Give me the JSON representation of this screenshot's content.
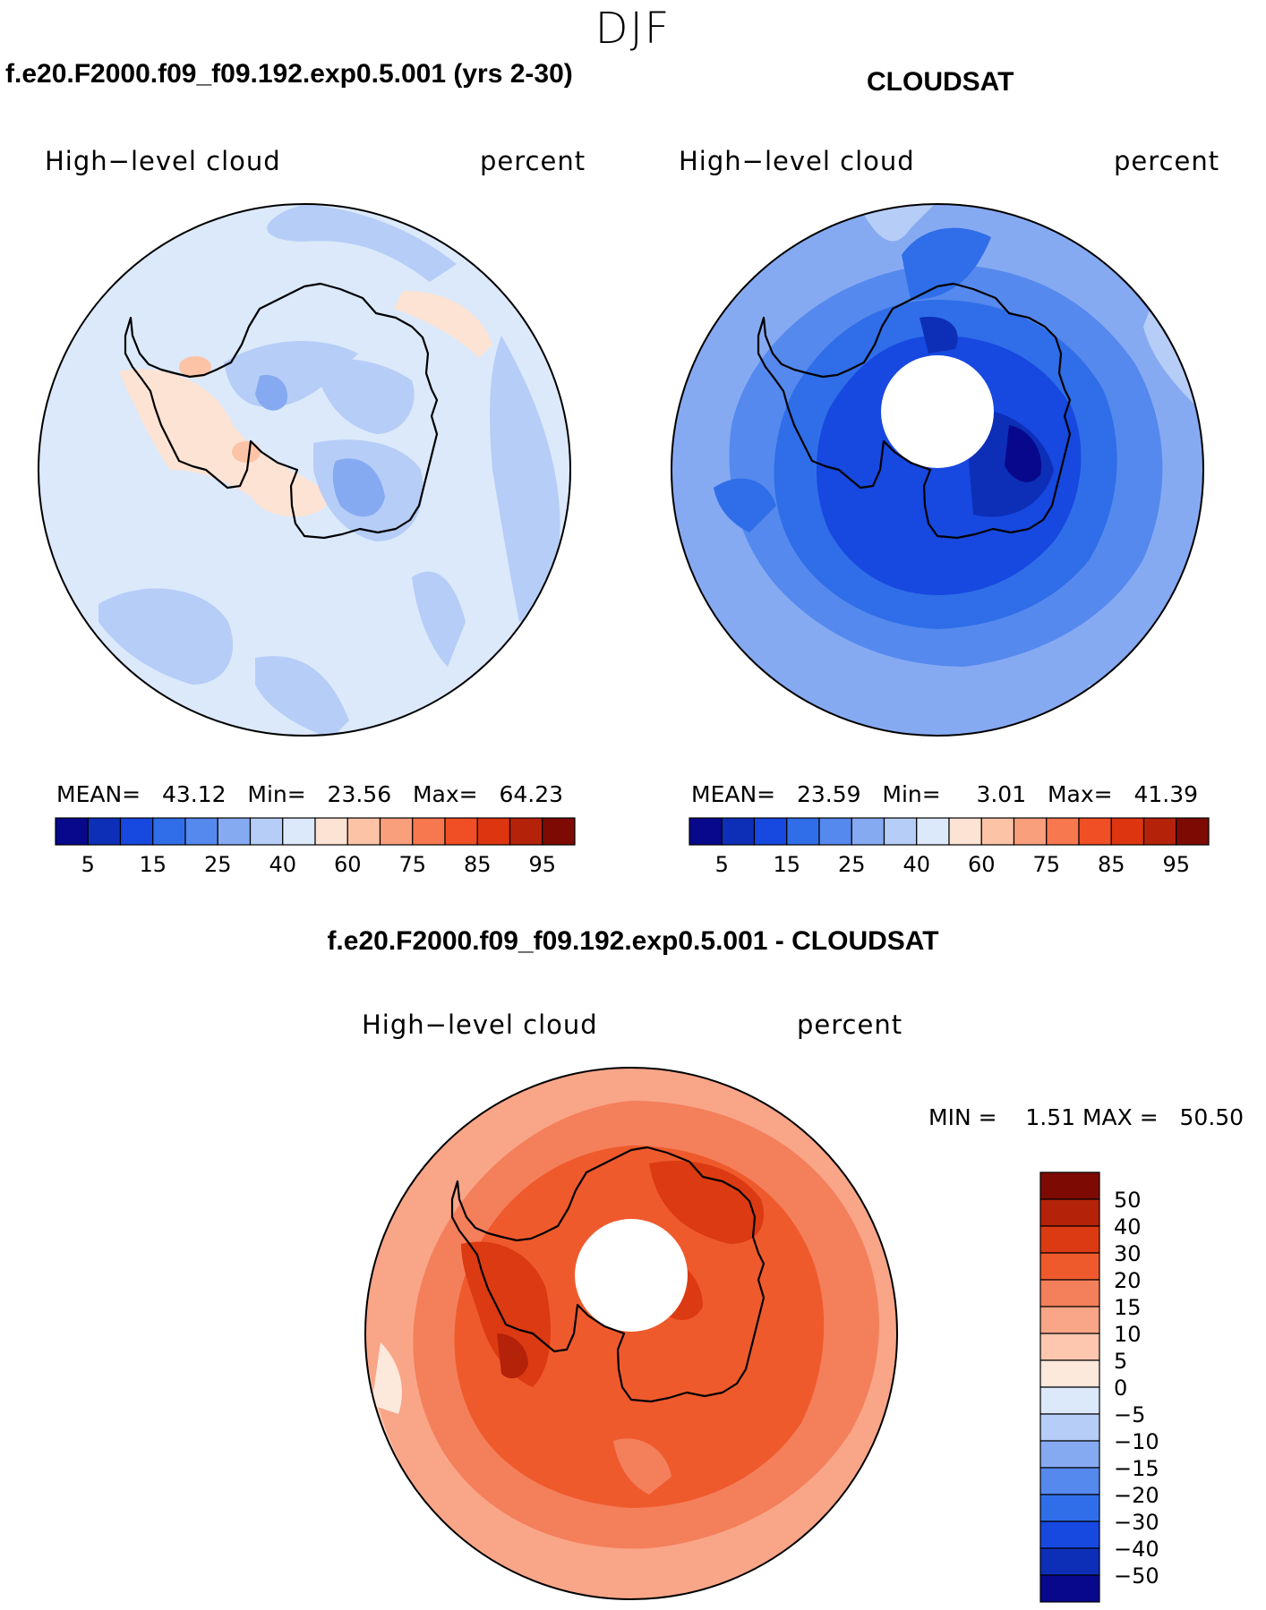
{
  "season": "DJF",
  "palette_abs": [
    "#08088c",
    "#0d2fb8",
    "#1748e0",
    "#2f6ee8",
    "#5589ee",
    "#86aaf2",
    "#b6cdf7",
    "#dbe9fb",
    "#fde3d3",
    "#fcc3a6",
    "#fa9f7c",
    "#f7784f",
    "#f04e24",
    "#dc3510",
    "#b5220a",
    "#7d0b04"
  ],
  "palette_diff": [
    "#08088c",
    "#0d2fb8",
    "#1748e0",
    "#2f6ee8",
    "#5589ee",
    "#86aaf2",
    "#b6cdf7",
    "#dbe9fb",
    "#fde8dc",
    "#fcc7ae",
    "#f9a588",
    "#f47f5b",
    "#ef5a2d",
    "#dc3a12",
    "#b5220a",
    "#7d0b04"
  ],
  "panels": {
    "model": {
      "title": "f.e20.F2000.f09_f09.192.exp0.5.001 (yrs 2-30)",
      "variable": "High−level cloud",
      "units": "percent",
      "mean_label": "MEAN=",
      "mean": "43.12",
      "min_label": "Min=",
      "min": "23.56",
      "max_label": "Max=",
      "max": "64.23",
      "colorbar_ticks": [
        "5",
        "15",
        "25",
        "40",
        "60",
        "75",
        "85",
        "95"
      ]
    },
    "obs": {
      "title": "CLOUDSAT",
      "variable": "High−level cloud",
      "units": "percent",
      "mean_label": "MEAN=",
      "mean": "23.59",
      "min_label": "Min=",
      "min": "3.01",
      "max_label": "Max=",
      "max": "41.39",
      "colorbar_ticks": [
        "5",
        "15",
        "25",
        "40",
        "60",
        "75",
        "85",
        "95"
      ]
    },
    "diff": {
      "title": "f.e20.F2000.f09_f09.192.exp0.5.001 - CLOUDSAT",
      "variable": "High−level cloud",
      "units": "percent",
      "min_label": "MIN =",
      "min": "1.51",
      "max_label": "MAX =",
      "max": "50.50",
      "colorbar_ticks": [
        "50",
        "40",
        "30",
        "20",
        "15",
        "10",
        "5",
        "0",
        "−5",
        "−10",
        "−15",
        "−20",
        "−30",
        "−40",
        "−50"
      ]
    }
  }
}
